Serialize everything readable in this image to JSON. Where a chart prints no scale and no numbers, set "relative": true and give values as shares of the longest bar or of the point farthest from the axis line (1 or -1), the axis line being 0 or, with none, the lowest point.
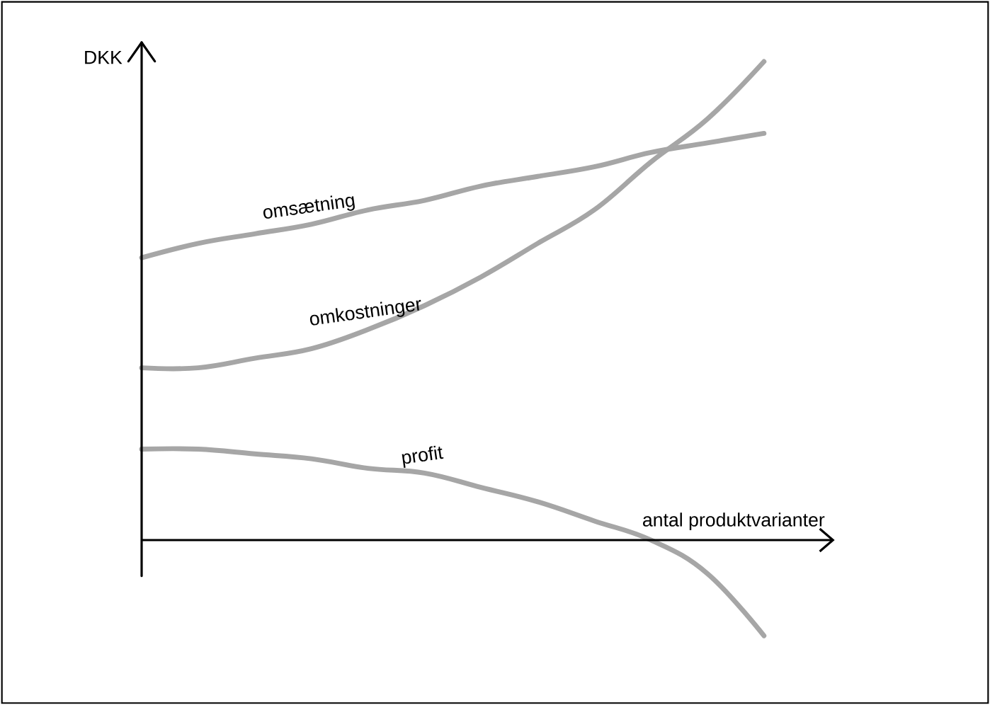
{
  "chart_data": {
    "type": "line",
    "xlabel": "antal produktvarianter",
    "ylabel": "DKK",
    "relative": true,
    "categories": [
      null,
      null,
      null,
      null,
      null,
      null,
      null,
      null,
      null,
      null,
      null,
      null,
      null
    ],
    "series": [
      {
        "name": "omsætning",
        "color": "#a6a6a6",
        "values": [
          0.59,
          0.62,
          0.64,
          0.66,
          0.69,
          0.71,
          0.74,
          0.76,
          0.78,
          0.81,
          0.83,
          0.85,
          null
        ]
      },
      {
        "name": "omkostninger",
        "color": "#a6a6a6",
        "values": [
          0.36,
          0.36,
          0.38,
          0.4,
          0.44,
          0.49,
          0.55,
          0.62,
          0.69,
          0.79,
          0.88,
          1.0,
          null
        ]
      },
      {
        "name": "profit",
        "color": "#a6a6a6",
        "values": [
          0.19,
          0.19,
          0.18,
          0.17,
          0.15,
          0.14,
          0.11,
          0.08,
          0.04,
          0.0,
          -0.07,
          -0.2,
          null
        ]
      }
    ]
  }
}
